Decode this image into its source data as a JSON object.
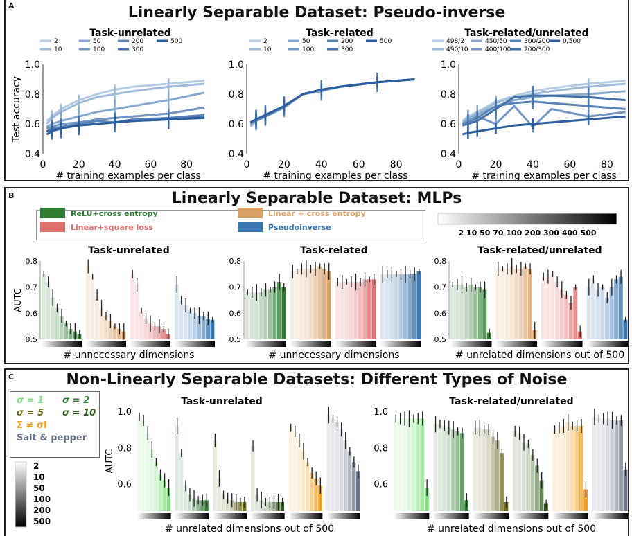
{
  "colors": {
    "green": "#2e7d32",
    "tan": "#d9a066",
    "red": "#e07070",
    "blue": "#3a76b0",
    "orange": "#f0a020",
    "slate": "#6a7488",
    "line": "#3a6ea8"
  },
  "panels": {
    "a": {
      "label": "A",
      "title": "Linearly Separable Dataset: Pseudo-inverse"
    },
    "b": {
      "label": "B",
      "title": "Linearly Separable Dataset: MLPs"
    },
    "c": {
      "label": "C",
      "title": "Non-Linearly Separable Datasets: Different Types of Noise"
    }
  },
  "legend_b": {
    "items": [
      "ReLU+cross entropy",
      "Linear + cross entropy",
      "Linear+square loss",
      "Pseudoinverse"
    ],
    "gradient_labels": "2 10 50 70 100 200 300 400 500"
  },
  "legend_c": {
    "items": [
      "σ = 1",
      "σ = 2",
      "σ = 5",
      "σ = 10",
      "Σ ≠ σI",
      "Salt & pepper"
    ],
    "gradient_labels": [
      "2",
      "10",
      "50",
      "100",
      "200",
      "500"
    ]
  },
  "chart_data": [
    {
      "type": "line",
      "panel": "A",
      "title": "Task-unrelated",
      "xlabel": "# training examples per class",
      "ylabel": "Test accuracy",
      "xlim": [
        0,
        95
      ],
      "ylim": [
        0.4,
        1.0
      ],
      "xticks": [
        0,
        20,
        40,
        60,
        80
      ],
      "yticks": [
        "0.4",
        "0.6",
        "0.8",
        "1.0"
      ],
      "legend": [
        "2",
        "10",
        "50",
        "100",
        "200",
        "300",
        "500"
      ],
      "x": [
        2,
        5,
        10,
        20,
        30,
        40,
        50,
        70,
        90
      ],
      "series": [
        {
          "name": "2",
          "values": [
            0.62,
            0.65,
            0.7,
            0.76,
            0.8,
            0.83,
            0.85,
            0.87,
            0.89
          ]
        },
        {
          "name": "10",
          "values": [
            0.6,
            0.64,
            0.68,
            0.74,
            0.78,
            0.8,
            0.82,
            0.85,
            0.87
          ]
        },
        {
          "name": "50",
          "values": [
            0.58,
            0.6,
            0.62,
            0.65,
            0.68,
            0.7,
            0.72,
            0.76,
            0.81
          ]
        },
        {
          "name": "100",
          "values": [
            0.57,
            0.58,
            0.6,
            0.61,
            0.63,
            0.64,
            0.65,
            0.67,
            0.71
          ]
        },
        {
          "name": "200",
          "values": [
            0.55,
            0.57,
            0.58,
            0.6,
            0.62,
            0.61,
            0.63,
            0.64,
            0.66
          ]
        },
        {
          "name": "300",
          "values": [
            0.55,
            0.56,
            0.57,
            0.59,
            0.6,
            0.61,
            0.62,
            0.63,
            0.65
          ]
        },
        {
          "name": "500",
          "values": [
            0.53,
            0.55,
            0.57,
            0.59,
            0.6,
            0.61,
            0.62,
            0.63,
            0.64
          ]
        }
      ]
    },
    {
      "type": "line",
      "panel": "A",
      "title": "Task-related",
      "xlabel": "# training examples per class",
      "ylabel": "",
      "xlim": [
        0,
        95
      ],
      "ylim": [
        0.4,
        1.0
      ],
      "xticks": [
        0,
        20,
        40,
        60,
        80
      ],
      "yticks": [
        "0.4",
        "0.6",
        "0.8",
        "1.0"
      ],
      "legend": [
        "2",
        "10",
        "50",
        "100",
        "200",
        "300",
        "500"
      ],
      "x": [
        2,
        5,
        10,
        20,
        30,
        40,
        50,
        70,
        90
      ],
      "series": [
        {
          "name": "2",
          "values": [
            0.58,
            0.62,
            0.65,
            0.71,
            0.8,
            0.82,
            0.85,
            0.88,
            0.9
          ]
        },
        {
          "name": "10",
          "values": [
            0.59,
            0.62,
            0.65,
            0.71,
            0.8,
            0.82,
            0.85,
            0.88,
            0.9
          ]
        },
        {
          "name": "50",
          "values": [
            0.6,
            0.62,
            0.65,
            0.71,
            0.8,
            0.82,
            0.85,
            0.88,
            0.9
          ]
        },
        {
          "name": "100",
          "values": [
            0.6,
            0.62,
            0.65,
            0.71,
            0.8,
            0.83,
            0.85,
            0.88,
            0.9
          ]
        },
        {
          "name": "200",
          "values": [
            0.61,
            0.63,
            0.65,
            0.72,
            0.8,
            0.83,
            0.85,
            0.88,
            0.9
          ]
        },
        {
          "name": "300",
          "values": [
            0.61,
            0.63,
            0.66,
            0.72,
            0.8,
            0.83,
            0.85,
            0.88,
            0.9
          ]
        },
        {
          "name": "500",
          "values": [
            0.61,
            0.63,
            0.66,
            0.72,
            0.8,
            0.83,
            0.85,
            0.88,
            0.9
          ]
        }
      ]
    },
    {
      "type": "line",
      "panel": "A",
      "title": "Task-related/unrelated",
      "xlabel": "# training examples per class",
      "ylabel": "",
      "xlim": [
        0,
        92
      ],
      "ylim": [
        0.4,
        1.0
      ],
      "xticks": [
        0,
        20,
        40,
        60,
        80
      ],
      "yticks": [
        "0.4",
        "0.6",
        "0.8",
        "1.0"
      ],
      "legend": [
        "498/2",
        "490/10",
        "450/50",
        "400/100",
        "300/200",
        "200/300",
        "0/500"
      ],
      "x": [
        2,
        5,
        10,
        20,
        30,
        40,
        50,
        70,
        90
      ],
      "series": [
        {
          "name": "498/2",
          "values": [
            0.62,
            0.65,
            0.68,
            0.75,
            0.79,
            0.82,
            0.84,
            0.87,
            0.89
          ]
        },
        {
          "name": "490/10",
          "values": [
            0.61,
            0.64,
            0.67,
            0.74,
            0.78,
            0.8,
            0.82,
            0.85,
            0.87
          ]
        },
        {
          "name": "450/50",
          "values": [
            0.6,
            0.63,
            0.66,
            0.72,
            0.76,
            0.78,
            0.79,
            0.8,
            0.82
          ]
        },
        {
          "name": "400/100",
          "values": [
            0.6,
            0.62,
            0.65,
            0.6,
            0.72,
            0.58,
            0.7,
            0.65,
            0.68
          ]
        },
        {
          "name": "300/200",
          "values": [
            0.6,
            0.61,
            0.64,
            0.72,
            0.74,
            0.75,
            0.74,
            0.72,
            0.7
          ]
        },
        {
          "name": "200/300",
          "values": [
            0.59,
            0.6,
            0.62,
            0.7,
            0.78,
            0.79,
            0.79,
            0.78,
            0.76
          ]
        },
        {
          "name": "0/500",
          "values": [
            0.53,
            0.54,
            0.55,
            0.57,
            0.59,
            0.6,
            0.61,
            0.63,
            0.65
          ]
        }
      ]
    },
    {
      "type": "bar",
      "panel": "B",
      "title": "Task-unrelated",
      "xlabel": "# unnecessary dimensions",
      "ylabel": "AUTC",
      "ylim": [
        0.5,
        0.8
      ],
      "yticks": [
        "0.5",
        "0.6",
        "0.7",
        "0.8"
      ],
      "series": [
        {
          "name": "ReLU+cross entropy",
          "values": [
            0.75,
            0.72,
            0.66,
            0.62,
            0.59,
            0.56,
            0.54,
            0.53,
            0.52
          ]
        },
        {
          "name": "Linear + cross entropy",
          "values": [
            0.78,
            0.74,
            0.67,
            0.62,
            0.59,
            0.57,
            0.55,
            0.54,
            0.53
          ]
        },
        {
          "name": "Linear+square loss",
          "values": [
            0.75,
            0.71,
            0.61,
            0.58,
            0.56,
            0.55,
            0.55,
            0.54,
            0.52
          ]
        },
        {
          "name": "Pseudoinverse",
          "values": [
            0.71,
            0.65,
            0.63,
            0.61,
            0.6,
            0.59,
            0.59,
            0.58,
            0.575
          ]
        }
      ]
    },
    {
      "type": "bar",
      "panel": "B",
      "title": "Task-related",
      "xlabel": "# unnecessary dimensions",
      "ylabel": "",
      "ylim": [
        0.5,
        0.8
      ],
      "yticks": [
        "0.5",
        "0.6",
        "0.7",
        "0.8"
      ],
      "series": [
        {
          "name": "ReLU+cross entropy",
          "values": [
            0.68,
            0.68,
            0.68,
            0.68,
            0.69,
            0.69,
            0.7,
            0.72,
            0.7
          ]
        },
        {
          "name": "Linear + cross entropy",
          "values": [
            0.76,
            0.76,
            0.77,
            0.77,
            0.77,
            0.77,
            0.78,
            0.77,
            0.76
          ]
        },
        {
          "name": "Linear+square loss",
          "values": [
            0.72,
            0.72,
            0.72,
            0.72,
            0.72,
            0.72,
            0.73,
            0.73,
            0.73
          ]
        },
        {
          "name": "Pseudoinverse",
          "values": [
            0.75,
            0.75,
            0.75,
            0.75,
            0.75,
            0.75,
            0.75,
            0.75,
            0.76
          ]
        }
      ]
    },
    {
      "type": "bar",
      "panel": "B",
      "title": "Task-related/unrelated",
      "xlabel": "# unrelated dimensions out of 500",
      "ylabel": "",
      "ylim": [
        0.5,
        0.8
      ],
      "yticks": [
        "0.5",
        "0.6",
        "0.7",
        "0.8"
      ],
      "series": [
        {
          "name": "ReLU+cross entropy",
          "values": [
            0.71,
            0.71,
            0.71,
            0.7,
            0.71,
            0.7,
            0.7,
            0.69,
            0.525
          ]
        },
        {
          "name": "Linear + cross entropy",
          "values": [
            0.77,
            0.77,
            0.77,
            0.78,
            0.77,
            0.77,
            0.78,
            0.77,
            0.535
          ]
        },
        {
          "name": "Linear+square loss",
          "values": [
            0.74,
            0.74,
            0.75,
            0.72,
            0.69,
            0.67,
            0.64,
            0.7,
            0.53
          ]
        },
        {
          "name": "Pseudoinverse",
          "values": [
            0.7,
            0.73,
            0.69,
            0.7,
            0.66,
            0.7,
            0.73,
            0.74,
            0.575
          ]
        }
      ]
    },
    {
      "type": "bar",
      "panel": "C",
      "title": "Task-unrelated",
      "xlabel": "# unrelated dimensions out of 500",
      "ylabel": "AUTC",
      "ylim": [
        0.45,
        1.0
      ],
      "yticks": [
        "0.6",
        "0.8",
        "1.0"
      ],
      "series": [
        {
          "name": "σ = 1",
          "values": [
            0.97,
            0.95,
            0.88,
            0.79,
            0.72,
            0.65,
            0.62,
            0.58
          ]
        },
        {
          "name": "σ = 2",
          "values": [
            0.92,
            0.77,
            0.59,
            0.54,
            0.52,
            0.51,
            0.51,
            0.51
          ]
        },
        {
          "name": "σ = 5",
          "values": [
            0.84,
            0.63,
            0.54,
            0.52,
            0.51,
            0.5,
            0.5,
            0.5
          ]
        },
        {
          "name": "σ = 10",
          "values": [
            0.81,
            0.54,
            0.51,
            0.5,
            0.5,
            0.5,
            0.5,
            0.5
          ]
        },
        {
          "name": "Σ ≠ σI",
          "values": [
            0.91,
            0.89,
            0.84,
            0.78,
            0.72,
            0.66,
            0.63,
            0.59
          ]
        },
        {
          "name": "Salt & pepper",
          "values": [
            0.98,
            0.96,
            0.94,
            0.9,
            0.84,
            0.78,
            0.72,
            0.67
          ]
        }
      ]
    },
    {
      "type": "bar",
      "panel": "C",
      "title": "Task-related/unrelated",
      "xlabel": "# unrelated dimensions out of 500",
      "ylabel": "",
      "ylim": [
        0.45,
        1.0
      ],
      "yticks": [
        "0.6",
        "0.8",
        "1.0"
      ],
      "series": [
        {
          "name": "σ = 1",
          "values": [
            0.96,
            0.96,
            0.96,
            0.96,
            0.96,
            0.96,
            0.96,
            0.58
          ]
        },
        {
          "name": "σ = 2",
          "values": [
            0.93,
            0.93,
            0.92,
            0.91,
            0.9,
            0.89,
            0.88,
            0.51
          ]
        },
        {
          "name": "σ = 5",
          "values": [
            0.91,
            0.91,
            0.9,
            0.9,
            0.86,
            0.84,
            0.77,
            0.5
          ]
        },
        {
          "name": "σ = 10",
          "values": [
            0.89,
            0.88,
            0.83,
            0.82,
            0.76,
            0.7,
            0.62,
            0.49
          ]
        },
        {
          "name": "Σ ≠ σI",
          "values": [
            0.9,
            0.91,
            0.92,
            0.94,
            0.92,
            0.92,
            0.92,
            0.57
          ]
        },
        {
          "name": "Salt & pepper",
          "values": [
            0.97,
            0.96,
            0.96,
            0.96,
            0.95,
            0.95,
            0.95,
            0.68
          ]
        }
      ]
    }
  ]
}
